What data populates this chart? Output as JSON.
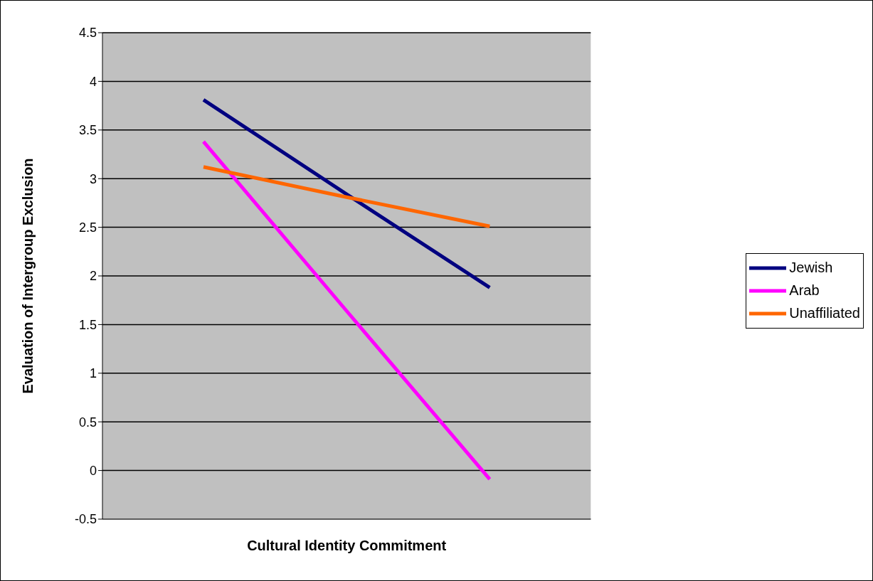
{
  "chart_data": {
    "type": "line",
    "xlabel": "Cultural Identity Commitment",
    "ylabel": "Evaluation of Intergroup Exclusion",
    "categories": [
      null,
      null,
      null
    ],
    "series": [
      {
        "name": "Jewish",
        "color": "#000080",
        "values": [
          3.81,
          2.84,
          1.88
        ]
      },
      {
        "name": "Arab",
        "color": "#ff00ff",
        "values": [
          3.38,
          1.64,
          -0.09
        ]
      },
      {
        "name": "Unaffiliated",
        "color": "#ff6600",
        "values": [
          3.12,
          2.81,
          2.51
        ]
      }
    ],
    "ylim": [
      -0.5,
      4.5
    ],
    "yticks": [
      -0.5,
      0,
      0.5,
      1,
      1.5,
      2,
      2.5,
      3,
      3.5,
      4,
      4.5
    ],
    "grid": "y",
    "legend": "right",
    "marker": "none",
    "line_style": "solid"
  }
}
